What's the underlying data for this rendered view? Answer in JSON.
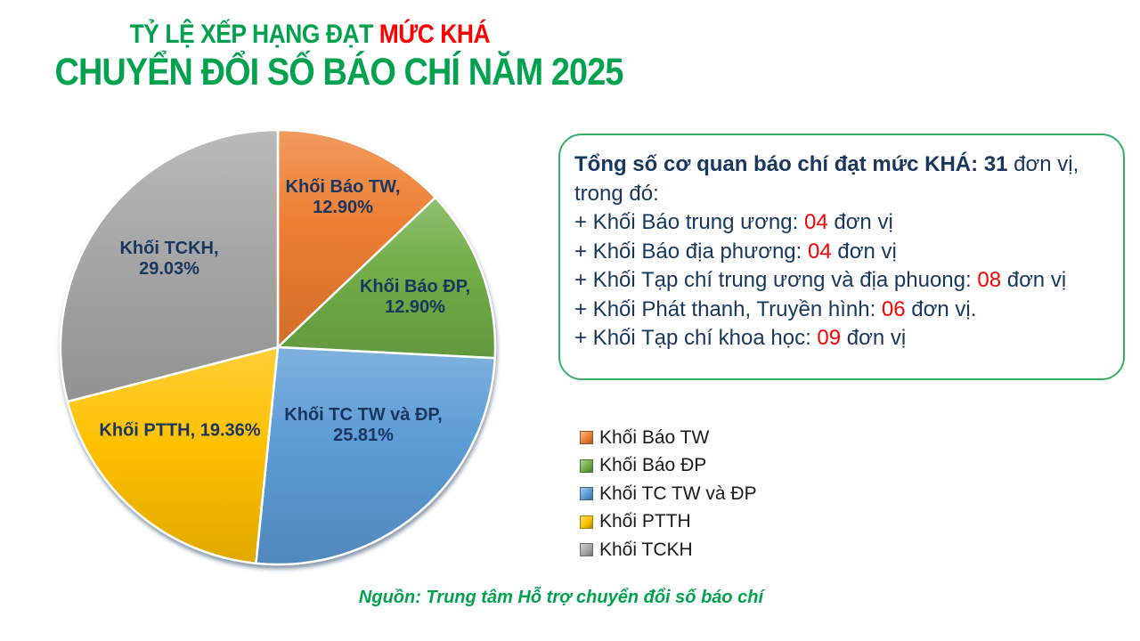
{
  "title": {
    "line1_segments": [
      {
        "text": "TỶ LỆ XẾP HẠNG ĐẠT ",
        "color": "#00a24e"
      },
      {
        "text": "MỨC KHÁ",
        "color": "#ff0000"
      }
    ],
    "line2": "CHUYỂN ĐỔI SỐ BÁO CHÍ NĂM 2025",
    "line2_color": "#00a24e"
  },
  "chart_data": {
    "type": "pie",
    "title": "Tỷ lệ xếp hạng đạt mức Khá - Chuyển đổi số báo chí năm 2025",
    "unit": "percent",
    "direction": "clockwise",
    "start_angle_deg": 0,
    "data_label_color": "#17375e",
    "slices": [
      {
        "label": "Khối Báo TW",
        "value": 12.9,
        "color": "#ED7D31",
        "label_lines": [
          "Khối Báo TW,",
          "12.90%"
        ]
      },
      {
        "label": "Khối Báo ĐP",
        "value": 12.9,
        "color": "#70AD47",
        "label_lines": [
          "Khối Báo ĐP,",
          "12.90%"
        ]
      },
      {
        "label": "Khối TC TW và ĐP",
        "value": 25.81,
        "color": "#5B9BD5",
        "label_lines": [
          "Khối TC TW và ĐP,",
          "25.81%"
        ]
      },
      {
        "label": "Khối PTTH",
        "value": 19.36,
        "color": "#FFC000",
        "label_lines": [
          "Khối PTTH, 19.36%"
        ]
      },
      {
        "label": "Khối TCKH",
        "value": 29.03,
        "color": "#A6A6A6",
        "label_lines": [
          "Khối TCKH,",
          "29.03%"
        ]
      }
    ],
    "legend_position": "right-bottom",
    "legend_entries": [
      "Khối Báo TW",
      "Khối Báo ĐP",
      "Khối TC TW và ĐP",
      "Khối PTTH",
      "Khối TCKH"
    ]
  },
  "info_box": {
    "border_color": "#35b065",
    "text_color": "#17375e",
    "number_color": "#ff0000",
    "lines": [
      [
        {
          "text": "Tổng số cơ quan báo chí đạt mức KHÁ: 31",
          "bold": true
        },
        {
          "text": " đơn vị,"
        }
      ],
      [
        {
          "text": "trong đó:"
        }
      ],
      [
        {
          "text": "+ Khối Báo trung ương: "
        },
        {
          "text": "04",
          "red": true
        },
        {
          "text": " đơn vị"
        }
      ],
      [
        {
          "text": "+ Khối Báo địa phương: "
        },
        {
          "text": "04",
          "red": true
        },
        {
          "text": " đơn vị"
        }
      ],
      [
        {
          "text": "+ Khối Tạp chí trung ương và địa phuong: "
        },
        {
          "text": "08",
          "red": true
        },
        {
          "text": " đơn vị"
        }
      ],
      [
        {
          "text": "+ Khối Phát thanh, Truyền hình: "
        },
        {
          "text": "06",
          "red": true
        },
        {
          "text": " đơn vị."
        }
      ],
      [
        {
          "text": "+ Khối Tạp chí khoa học: "
        },
        {
          "text": "09",
          "red": true
        },
        {
          "text": " đơn vị"
        }
      ]
    ]
  },
  "legend": {
    "items": [
      {
        "label": "Khối Báo TW",
        "color": "#ED7D31"
      },
      {
        "label": "Khối Báo ĐP",
        "color": "#70AD47"
      },
      {
        "label": "Khối TC TW và ĐP",
        "color": "#5B9BD5"
      },
      {
        "label": "Khối PTTH",
        "color": "#FFC000"
      },
      {
        "label": "Khối TCKH",
        "color": "#A6A6A6"
      }
    ]
  },
  "source": "Nguồn: Trung tâm Hỗ trợ chuyển đổi số báo chí",
  "source_color": "#00a24e"
}
